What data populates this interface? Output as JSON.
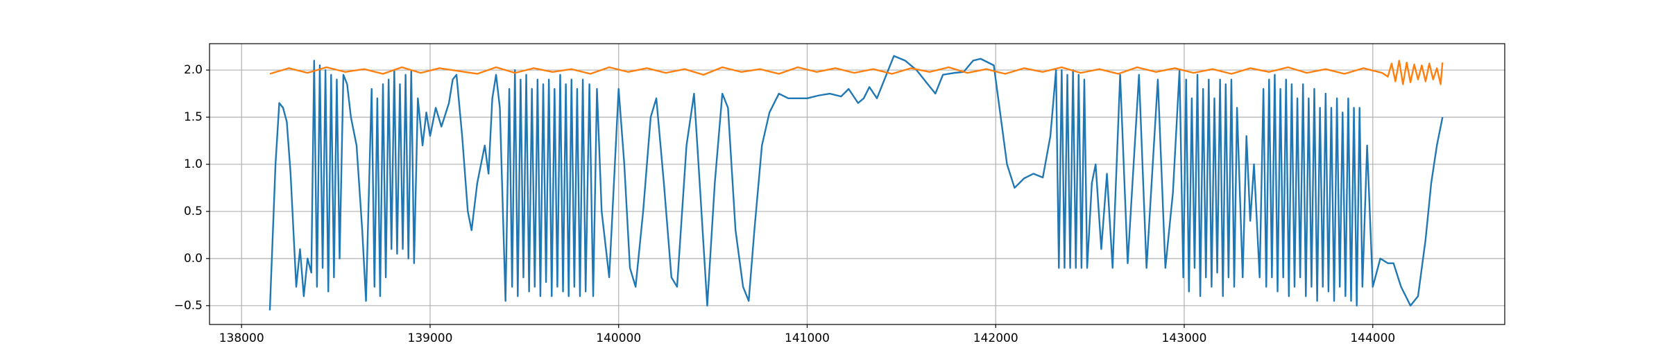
{
  "chart_data": {
    "type": "line",
    "xlim": [
      137830,
      144700
    ],
    "ylim": [
      -0.7,
      2.28
    ],
    "xticks": [
      138000,
      139000,
      140000,
      141000,
      142000,
      143000,
      144000
    ],
    "yticks": [
      {
        "value": -0.5,
        "label": "−0.5"
      },
      {
        "value": 0,
        "label": "0.0"
      },
      0.5,
      {
        "value": 1,
        "label": "1.0"
      },
      1.5,
      {
        "value": 2,
        "label": "2.0"
      }
    ],
    "grid": true,
    "series": [
      {
        "color": "#1f77b4",
        "x": [
          138150,
          138180,
          138200,
          138220,
          138240,
          138260,
          138290,
          138310,
          138330,
          138350,
          138370,
          138385,
          138400,
          138415,
          138430,
          138445,
          138460,
          138475,
          138490,
          138505,
          138520,
          138540,
          138560,
          138580,
          138610,
          138640,
          138660,
          138690,
          138705,
          138720,
          138735,
          138750,
          138765,
          138780,
          138795,
          138810,
          138825,
          138840,
          138855,
          138870,
          138885,
          138900,
          138915,
          138935,
          138960,
          138980,
          139000,
          139030,
          139060,
          139100,
          139120,
          139140,
          139170,
          139200,
          139220,
          139250,
          139290,
          139310,
          139330,
          139350,
          139370,
          139400,
          139420,
          139435,
          139450,
          139465,
          139480,
          139495,
          139510,
          139525,
          139540,
          139555,
          139570,
          139585,
          139600,
          139615,
          139630,
          139645,
          139660,
          139675,
          139690,
          139705,
          139720,
          139735,
          139750,
          139765,
          139780,
          139795,
          139810,
          139825,
          139845,
          139865,
          139885,
          139910,
          139950,
          139970,
          140000,
          140030,
          140060,
          140090,
          140130,
          140170,
          140200,
          140240,
          140280,
          140310,
          140360,
          140400,
          140430,
          140470,
          140510,
          140550,
          140580,
          140620,
          140660,
          140690,
          140720,
          140760,
          140800,
          140850,
          140900,
          141000,
          141060,
          141120,
          141180,
          141220,
          141270,
          141300,
          141330,
          141370,
          141420,
          141460,
          141520,
          141580,
          141640,
          141680,
          141720,
          141780,
          141830,
          141880,
          141920,
          141990,
          142020,
          142060,
          142100,
          142150,
          142200,
          142250,
          142290,
          142320,
          142335,
          142350,
          142365,
          142380,
          142395,
          142410,
          142425,
          142440,
          142455,
          142470,
          142485,
          142510,
          142530,
          142560,
          142590,
          142620,
          142660,
          142700,
          142760,
          142800,
          142860,
          142900,
          142940,
          142975,
          142995,
          143010,
          143025,
          143040,
          143055,
          143070,
          143085,
          143100,
          143115,
          143130,
          143145,
          143160,
          143175,
          143190,
          143205,
          143220,
          143235,
          143250,
          143265,
          143280,
          143310,
          143330,
          143350,
          143370,
          143400,
          143420,
          143435,
          143450,
          143465,
          143480,
          143495,
          143510,
          143525,
          143540,
          143555,
          143570,
          143585,
          143600,
          143615,
          143630,
          143645,
          143660,
          143675,
          143690,
          143705,
          143720,
          143735,
          143750,
          143765,
          143780,
          143795,
          143810,
          143825,
          143840,
          143855,
          143870,
          143885,
          143900,
          143915,
          143930,
          143945,
          143970,
          144000,
          144040,
          144080,
          144110,
          144150,
          144200,
          144240,
          144280,
          144310,
          144340,
          144370
        ],
        "values": [
          -0.55,
          1.0,
          1.65,
          1.6,
          1.45,
          0.9,
          -0.3,
          0.1,
          -0.4,
          0.0,
          -0.15,
          2.1,
          -0.3,
          2.05,
          -0.1,
          2.0,
          -0.35,
          1.95,
          -0.2,
          1.9,
          0.0,
          1.95,
          1.85,
          1.5,
          1.2,
          0.3,
          -0.45,
          1.8,
          -0.3,
          1.7,
          -0.4,
          1.85,
          -0.2,
          1.9,
          0.1,
          2.0,
          0.05,
          1.85,
          0.1,
          1.95,
          0.0,
          2.0,
          -0.05,
          1.7,
          1.2,
          1.55,
          1.3,
          1.6,
          1.4,
          1.65,
          1.9,
          1.95,
          1.3,
          0.5,
          0.3,
          0.8,
          1.2,
          0.9,
          1.7,
          1.95,
          1.6,
          -0.45,
          1.8,
          -0.3,
          2.0,
          -0.4,
          1.9,
          -0.2,
          1.95,
          -0.35,
          1.8,
          -0.3,
          1.9,
          -0.4,
          1.85,
          -0.25,
          1.9,
          -0.4,
          1.8,
          -0.3,
          1.95,
          -0.35,
          1.85,
          -0.4,
          1.9,
          -0.3,
          1.8,
          -0.4,
          1.9,
          -0.35,
          1.85,
          -0.4,
          1.8,
          0.5,
          -0.2,
          0.6,
          1.8,
          1.0,
          -0.1,
          -0.3,
          0.5,
          1.5,
          1.7,
          0.8,
          -0.2,
          -0.3,
          1.2,
          1.75,
          0.8,
          -0.5,
          0.8,
          1.75,
          1.6,
          0.3,
          -0.3,
          -0.45,
          0.3,
          1.2,
          1.55,
          1.75,
          1.7,
          1.7,
          1.73,
          1.75,
          1.72,
          1.8,
          1.65,
          1.7,
          1.82,
          1.7,
          1.95,
          2.15,
          2.1,
          2.0,
          1.85,
          1.75,
          1.95,
          1.97,
          1.98,
          2.1,
          2.12,
          2.05,
          1.6,
          1.0,
          0.75,
          0.85,
          0.9,
          0.86,
          1.3,
          2.0,
          -0.1,
          2.0,
          -0.1,
          1.95,
          -0.1,
          2.0,
          -0.1,
          1.95,
          -0.1,
          1.9,
          -0.1,
          0.8,
          1.0,
          0.1,
          0.9,
          -0.1,
          1.95,
          -0.05,
          1.95,
          -0.1,
          1.9,
          -0.1,
          0.7,
          2.0,
          -0.2,
          1.9,
          -0.35,
          1.7,
          -0.1,
          1.95,
          -0.4,
          1.8,
          -0.2,
          1.9,
          -0.3,
          1.7,
          -0.15,
          1.9,
          -0.4,
          1.85,
          -0.2,
          1.9,
          -0.3,
          1.6,
          -0.2,
          1.3,
          0.4,
          1.0,
          -0.2,
          1.8,
          -0.3,
          1.9,
          -0.2,
          1.95,
          -0.35,
          1.8,
          -0.2,
          1.9,
          -0.4,
          1.85,
          -0.3,
          1.7,
          -0.2,
          1.85,
          -0.4,
          1.7,
          -0.3,
          1.8,
          -0.45,
          1.6,
          -0.3,
          1.75,
          -0.35,
          1.6,
          -0.45,
          1.7,
          -0.3,
          1.55,
          -0.4,
          1.7,
          -0.45,
          1.6,
          -0.5,
          1.6,
          -0.3,
          1.2,
          -0.3,
          0.0,
          -0.05,
          -0.05,
          -0.3,
          -0.5,
          -0.4,
          0.2,
          0.8,
          1.2,
          1.5
        ]
      },
      {
        "color": "#ff7f0e",
        "x": [
          138150,
          138250,
          138350,
          138450,
          138550,
          138650,
          138750,
          138850,
          138950,
          139050,
          139150,
          139250,
          139350,
          139450,
          139550,
          139650,
          139750,
          139850,
          139950,
          140050,
          140150,
          140250,
          140350,
          140450,
          140550,
          140650,
          140750,
          140850,
          140950,
          141050,
          141150,
          141250,
          141350,
          141450,
          141550,
          141650,
          141750,
          141850,
          141950,
          142050,
          142150,
          142250,
          142350,
          142450,
          142550,
          142650,
          142750,
          142850,
          142950,
          143050,
          143150,
          143250,
          143350,
          143450,
          143550,
          143650,
          143750,
          143850,
          143950,
          144050,
          144080,
          144100,
          144120,
          144140,
          144160,
          144180,
          144200,
          144220,
          144240,
          144260,
          144280,
          144300,
          144320,
          144340,
          144360,
          144370
        ],
        "values": [
          1.96,
          2.02,
          1.97,
          2.03,
          1.98,
          2.01,
          1.96,
          2.03,
          1.97,
          2.02,
          1.99,
          1.96,
          2.03,
          1.97,
          2.02,
          1.98,
          2.01,
          1.96,
          2.03,
          1.98,
          2.02,
          1.97,
          2.01,
          1.95,
          2.03,
          1.98,
          2.01,
          1.96,
          2.03,
          1.98,
          2.02,
          1.97,
          2.01,
          1.96,
          2.02,
          1.98,
          2.03,
          1.97,
          2.01,
          1.96,
          2.02,
          1.98,
          2.03,
          1.97,
          2.01,
          1.96,
          2.03,
          1.98,
          2.02,
          1.97,
          2.01,
          1.96,
          2.02,
          1.98,
          2.03,
          1.97,
          2.01,
          1.96,
          2.02,
          1.97,
          1.93,
          2.07,
          1.88,
          2.1,
          1.85,
          2.08,
          1.87,
          2.06,
          1.9,
          2.05,
          1.88,
          2.07,
          1.9,
          2.02,
          1.85,
          2.08
        ]
      }
    ]
  }
}
